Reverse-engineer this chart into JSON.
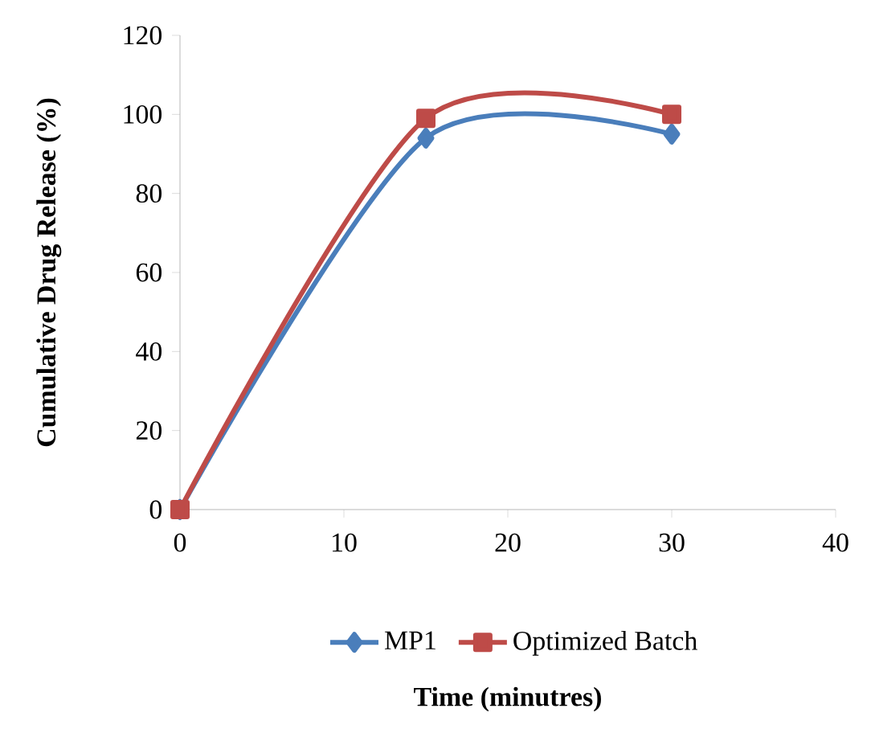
{
  "chart_data": {
    "type": "line",
    "xlabel": "Time (minutres)",
    "ylabel": "Cumulative Drug Release (%)",
    "x": [
      0,
      15,
      30
    ],
    "series": [
      {
        "name": "MP1",
        "color": "#4a7ebb",
        "marker": "diamond",
        "values": [
          0,
          94,
          95
        ]
      },
      {
        "name": "Optimized Batch",
        "color": "#be4b48",
        "marker": "square",
        "values": [
          0,
          99,
          100
        ]
      }
    ],
    "xlim": [
      0,
      40
    ],
    "ylim": [
      0,
      120
    ],
    "xticks": [
      0,
      10,
      20,
      30,
      40
    ],
    "yticks": [
      0,
      20,
      40,
      60,
      80,
      100,
      120
    ],
    "legend": "bottom"
  }
}
